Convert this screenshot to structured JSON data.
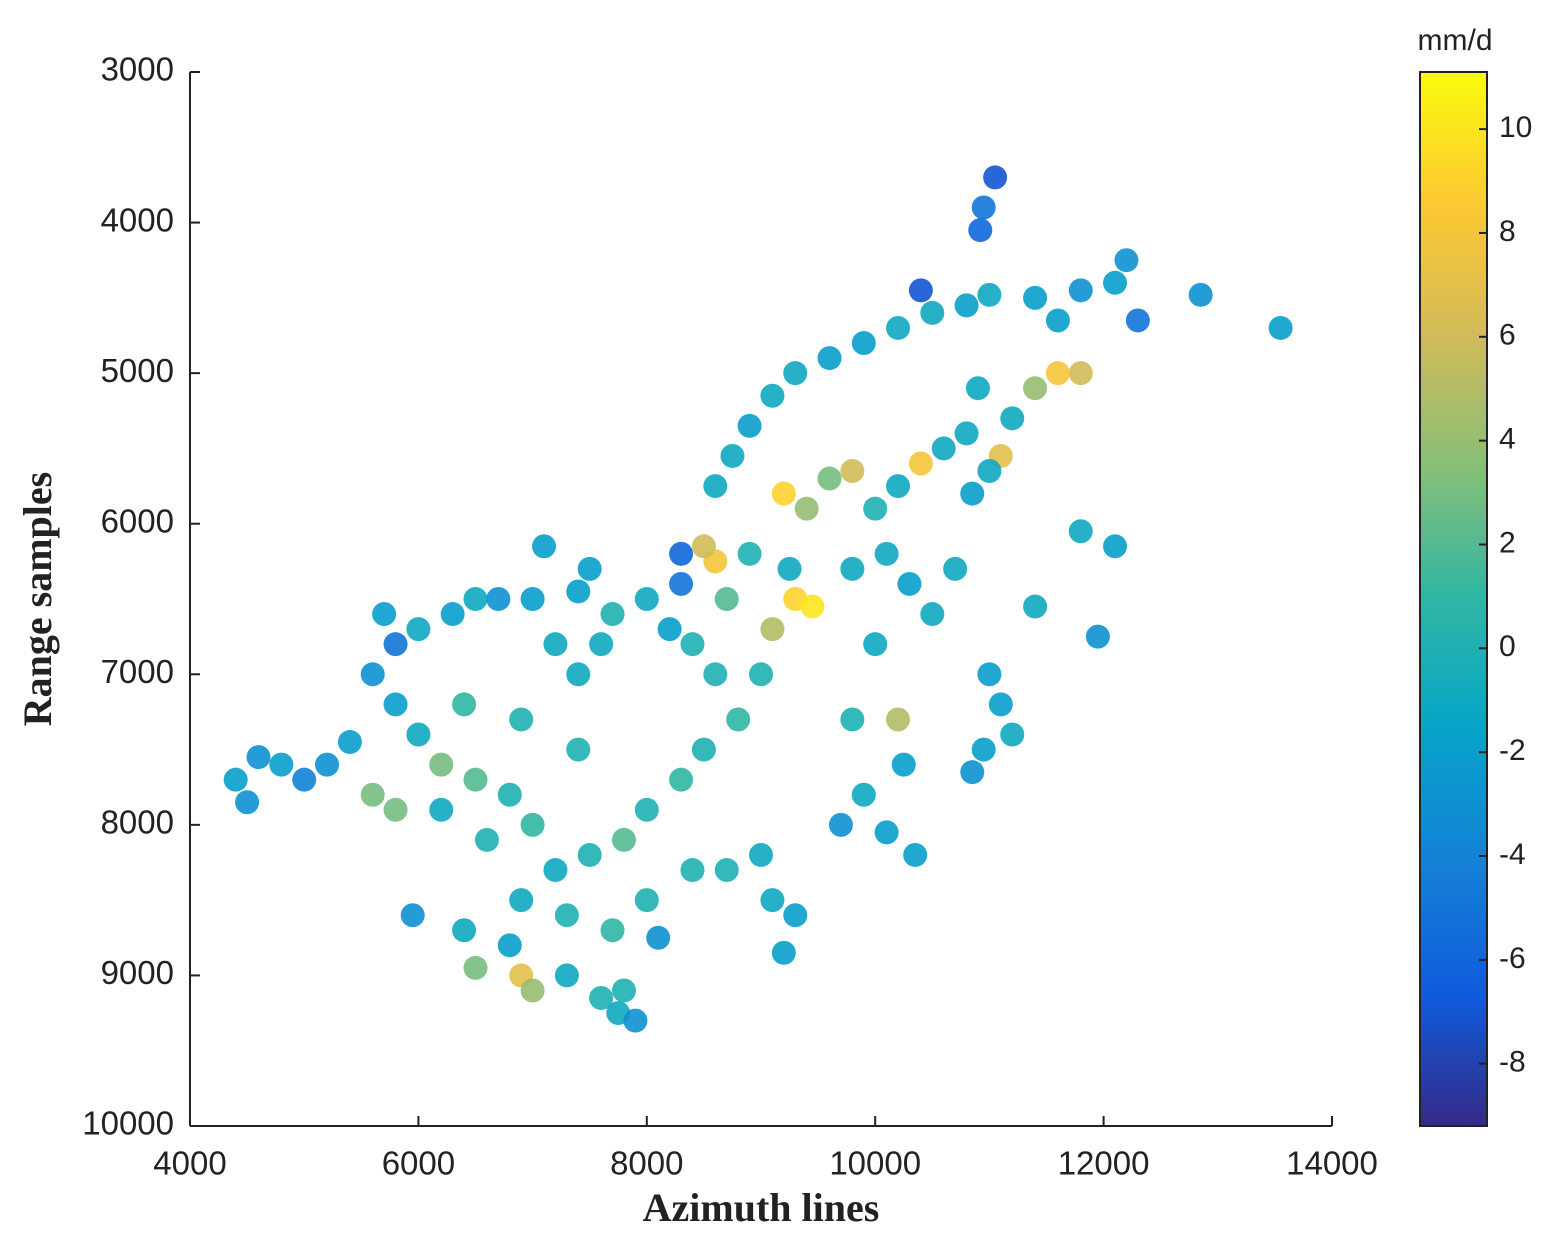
{
  "chart_data": {
    "type": "scatter",
    "x_label": "Azimuth lines",
    "y_label": "Range samples",
    "colorbar_label": "mm/d",
    "xlim": [
      4000,
      14000
    ],
    "xticks": [
      4000,
      6000,
      8000,
      10000,
      12000,
      14000
    ],
    "ylim": [
      3000,
      10000
    ],
    "yticks": [
      3000,
      4000,
      5000,
      6000,
      7000,
      8000,
      9000,
      10000
    ],
    "y_reversed": true,
    "clim": [
      -9.2,
      11.1
    ],
    "cticks": [
      -8,
      -6,
      -4,
      -2,
      0,
      2,
      4,
      6,
      8,
      10
    ],
    "colormap": [
      "#352a87",
      "#0f5cdd",
      "#1481d6",
      "#06a4ca",
      "#2eb7a4",
      "#87bf77",
      "#d1bb59",
      "#fec832",
      "#f9fb0e"
    ],
    "x": [
      11050,
      10950,
      10920,
      10400,
      10800,
      11000,
      10500,
      10200,
      9900,
      9600,
      9300,
      9100,
      8900,
      8750,
      8600,
      11400,
      11800,
      12200,
      12100,
      12300,
      12850,
      13550,
      11600,
      11800,
      11600,
      11400,
      11200,
      10900,
      10800,
      11100,
      11000,
      10850,
      10600,
      10400,
      10200,
      10000,
      9800,
      9600,
      9200,
      9400,
      9300,
      9450,
      9250,
      9100,
      8900,
      8600,
      8500,
      8700,
      9800,
      10100,
      10300,
      10000,
      10500,
      10700,
      11800,
      12100,
      11950,
      11400,
      11000,
      11100,
      10950,
      11200,
      10850,
      10200,
      10250,
      10350,
      9800,
      9900,
      9700,
      10100,
      9000,
      8800,
      8500,
      8300,
      8000,
      7800,
      7500,
      7200,
      7000,
      6800,
      6500,
      6200,
      6000,
      5800,
      5600,
      5800,
      5700,
      6000,
      6300,
      6500,
      6700,
      7000,
      7200,
      7400,
      7600,
      7700,
      7500,
      8000,
      8200,
      8300,
      8400,
      8600,
      7400,
      6900,
      6400,
      6200,
      6600,
      6900,
      7300,
      7700,
      8000,
      8400,
      8700,
      9000,
      9100,
      9300,
      9200,
      8100,
      4400,
      4600,
      4800,
      5000,
      5200,
      5400,
      4500,
      5600,
      5800,
      5950,
      6400,
      6800,
      6900,
      7000,
      6500,
      7300,
      7600,
      7750,
      7900,
      7800,
      7100,
      8300,
      7400
    ],
    "y": [
      3700,
      3900,
      4050,
      4450,
      4550,
      4480,
      4600,
      4700,
      4800,
      4900,
      5000,
      5150,
      5350,
      5550,
      5750,
      4500,
      4450,
      4250,
      4400,
      4650,
      4480,
      4700,
      4650,
      5000,
      5000,
      5100,
      5300,
      5100,
      5400,
      5550,
      5650,
      5800,
      5500,
      5600,
      5750,
      5900,
      5650,
      5700,
      5800,
      5900,
      6500,
      6550,
      6300,
      6700,
      6200,
      6250,
      6150,
      6500,
      6300,
      6200,
      6400,
      6800,
      6600,
      6300,
      6050,
      6150,
      6750,
      6550,
      7000,
      7200,
      7500,
      7400,
      7650,
      7300,
      7600,
      8200,
      7300,
      7800,
      8000,
      8050,
      7000,
      7300,
      7500,
      7700,
      7900,
      8100,
      8200,
      8300,
      8000,
      7800,
      7700,
      7600,
      7400,
      7200,
      7000,
      6800,
      6600,
      6700,
      6600,
      6500,
      6500,
      6500,
      6800,
      7000,
      6800,
      6600,
      6300,
      6500,
      6700,
      6400,
      6800,
      7000,
      7500,
      7300,
      7200,
      7900,
      8100,
      8500,
      8600,
      8700,
      8500,
      8300,
      8300,
      8200,
      8500,
      8600,
      8850,
      8750,
      7700,
      7550,
      7600,
      7700,
      7600,
      7450,
      7850,
      7800,
      7900,
      8600,
      8700,
      8800,
      9000,
      9100,
      8950,
      9000,
      9150,
      9250,
      9300,
      9100,
      6150,
      6200,
      6450
    ],
    "values": [
      -7,
      -5,
      -6,
      -7,
      -2,
      -1,
      -1,
      -1,
      -2,
      -2,
      -1,
      -1,
      -2,
      -1,
      -1,
      -2,
      -3,
      -3,
      -2,
      -5,
      -3,
      -2,
      -2,
      6,
      8,
      4,
      -1,
      -1,
      -1,
      7,
      -1,
      -2,
      -1,
      8,
      -1,
      0,
      6,
      3,
      9,
      4,
      9,
      10,
      -1,
      5,
      0,
      8,
      6,
      2,
      -1,
      -1,
      -2,
      -1,
      -1,
      -1,
      -1,
      -2,
      -3,
      -1,
      -2,
      -2,
      -2,
      -1,
      -3,
      5,
      -2,
      -2,
      0,
      -1,
      -3,
      -2,
      0,
      1,
      0,
      1,
      0,
      2,
      0,
      -1,
      1,
      0,
      2,
      3,
      -1,
      -2,
      -3,
      -5,
      -2,
      -1,
      -2,
      -1,
      -3,
      -2,
      -1,
      -1,
      -1,
      0,
      -2,
      -1,
      -2,
      -5,
      0,
      0,
      0,
      0,
      1,
      -1,
      0,
      -1,
      0,
      1,
      0,
      0,
      0,
      -1,
      -1,
      -2,
      -2,
      -3,
      -2,
      -3,
      -2,
      -4,
      -3,
      -2,
      -3,
      3,
      3,
      -3,
      -1,
      -2,
      7,
      4,
      3,
      -1,
      0,
      -1,
      -3,
      0,
      -2,
      -6,
      -2
    ]
  }
}
